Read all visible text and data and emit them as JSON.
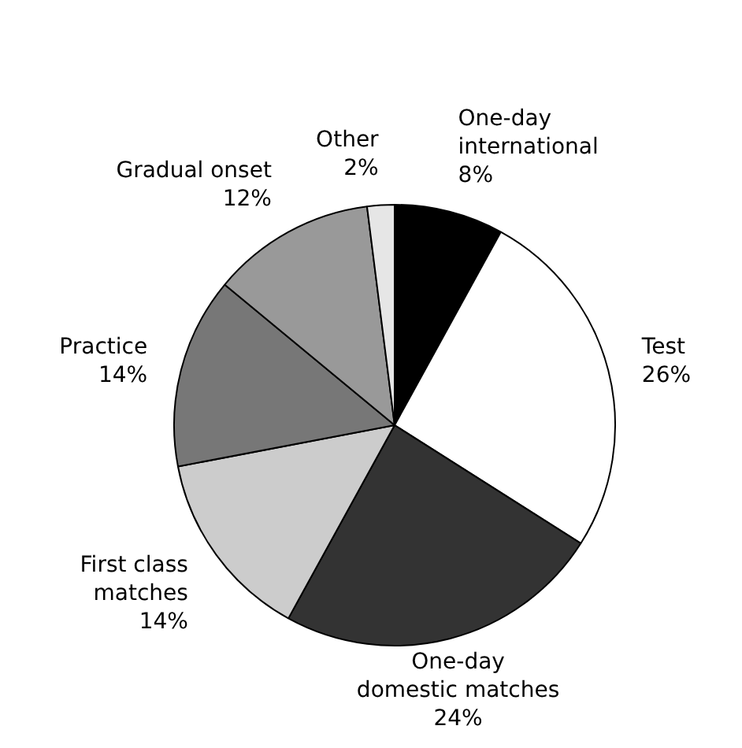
{
  "chart_data": {
    "type": "pie",
    "categories": [
      "One-day\ninternational",
      "Test",
      "One-day\ndomestic matches",
      "First class\nmatches",
      "Practice",
      "Gradual onset",
      "Other"
    ],
    "values": [
      8,
      26,
      24,
      14,
      14,
      12,
      2
    ],
    "colors": [
      "#000000",
      "#ffffff",
      "#333333",
      "#cccccc",
      "#777777",
      "#999999",
      "#e6e6e6"
    ],
    "value_labels": [
      "8%",
      "26%",
      "24%",
      "14%",
      "14%",
      "12%",
      "2%"
    ],
    "legend": false
  }
}
